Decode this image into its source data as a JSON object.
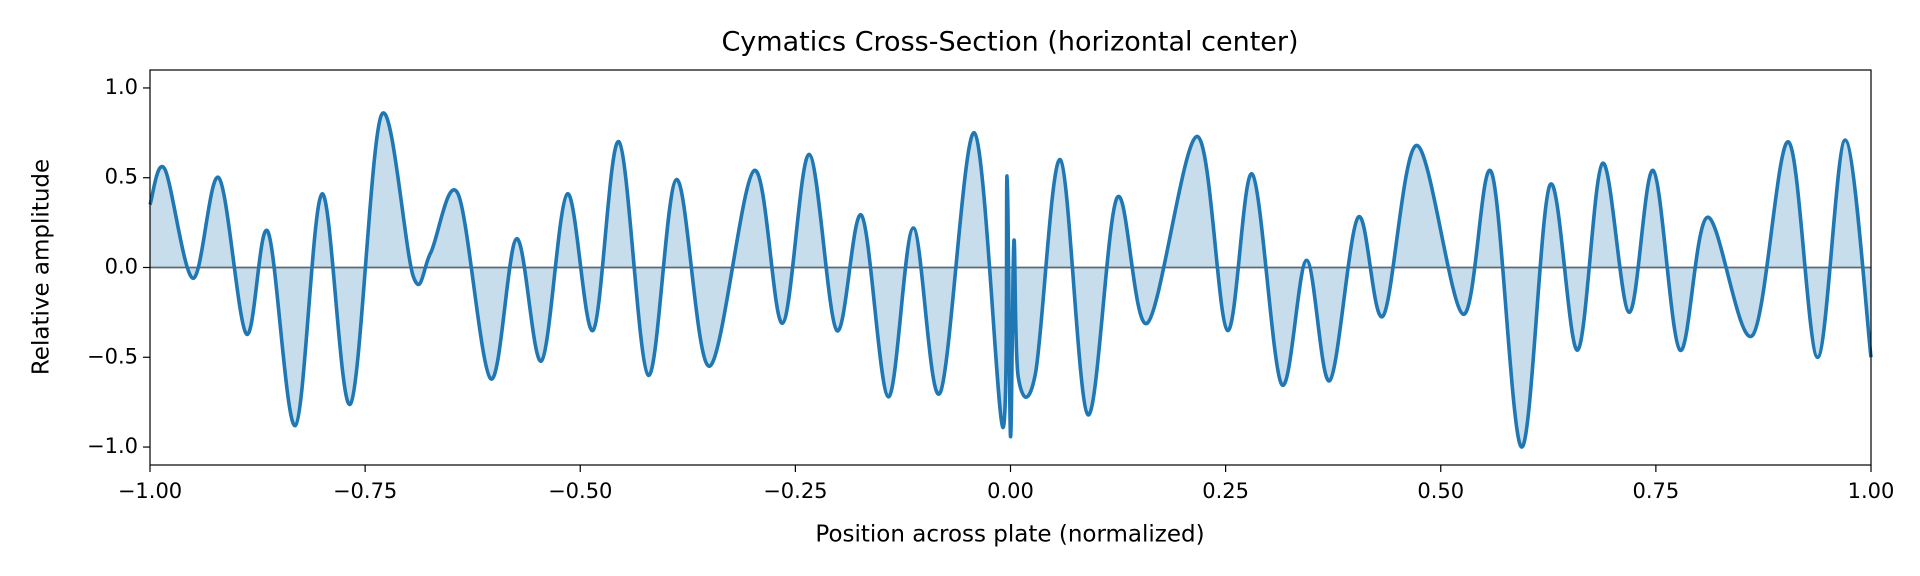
{
  "chart_data": {
    "type": "line",
    "title": "Cymatics Cross-Section (horizontal center)",
    "x_label": "Position across plate (normalized)",
    "y_label": "Relative amplitude",
    "xlim": [
      -1,
      1
    ],
    "ylim": [
      -1.1,
      1.1
    ],
    "xticks": [
      {
        "value": -1,
        "label": "−1.00"
      },
      {
        "value": -0.75,
        "label": "−0.75"
      },
      {
        "value": -0.5,
        "label": "−0.50"
      },
      {
        "value": -0.25,
        "label": "−0.25"
      },
      {
        "value": 0,
        "label": "0.00"
      },
      {
        "value": 0.25,
        "label": "0.25"
      },
      {
        "value": 0.5,
        "label": "0.50"
      },
      {
        "value": 0.75,
        "label": "0.75"
      },
      {
        "value": 1,
        "label": "1.00"
      }
    ],
    "yticks": [
      {
        "value": -1,
        "label": "−1.0"
      },
      {
        "value": -0.5,
        "label": "−0.5"
      },
      {
        "value": 0,
        "label": "0.0"
      },
      0.5,
      {
        "value": 1,
        "label": "1.0"
      }
    ],
    "x": [
      -1.0,
      -0.983,
      -0.95,
      -0.92,
      -0.888,
      -0.863,
      -0.831,
      -0.8,
      -0.767,
      -0.731,
      -0.694,
      -0.674,
      -0.642,
      -0.604,
      -0.574,
      -0.545,
      -0.515,
      -0.485,
      -0.455,
      -0.421,
      -0.388,
      -0.35,
      -0.298,
      -0.265,
      -0.234,
      -0.202,
      -0.173,
      -0.142,
      -0.113,
      -0.082,
      -0.042,
      -0.009,
      -0.004,
      0.0,
      0.004,
      0.009,
      0.029,
      0.058,
      0.09,
      0.124,
      0.159,
      0.217,
      0.252,
      0.281,
      0.315,
      0.344,
      0.371,
      0.404,
      0.433,
      0.472,
      0.526,
      0.559,
      0.594,
      0.627,
      0.659,
      0.688,
      0.719,
      0.747,
      0.778,
      0.81,
      0.862,
      0.904,
      0.938,
      0.97,
      1.0
    ],
    "series": [
      {
        "color": "#1f77b4",
        "values": [
          0.35,
          0.55,
          -0.06,
          0.5,
          -0.37,
          0.2,
          -0.88,
          0.41,
          -0.76,
          0.85,
          -0.05,
          0.08,
          0.41,
          -0.62,
          0.16,
          -0.52,
          0.41,
          -0.35,
          0.7,
          -0.6,
          0.49,
          -0.55,
          0.54,
          -0.31,
          0.63,
          -0.35,
          0.29,
          -0.72,
          0.22,
          -0.7,
          0.75,
          -0.89,
          0.51,
          -0.94,
          0.15,
          -0.61,
          -0.59,
          0.6,
          -0.82,
          0.39,
          -0.31,
          0.73,
          -0.35,
          0.52,
          -0.65,
          0.04,
          -0.63,
          0.28,
          -0.27,
          0.68,
          -0.26,
          0.53,
          -1.0,
          0.46,
          -0.46,
          0.58,
          -0.25,
          0.54,
          -0.46,
          0.28,
          -0.38,
          0.7,
          -0.5,
          0.71,
          -0.5
        ]
      }
    ],
    "fill_under": true
  }
}
